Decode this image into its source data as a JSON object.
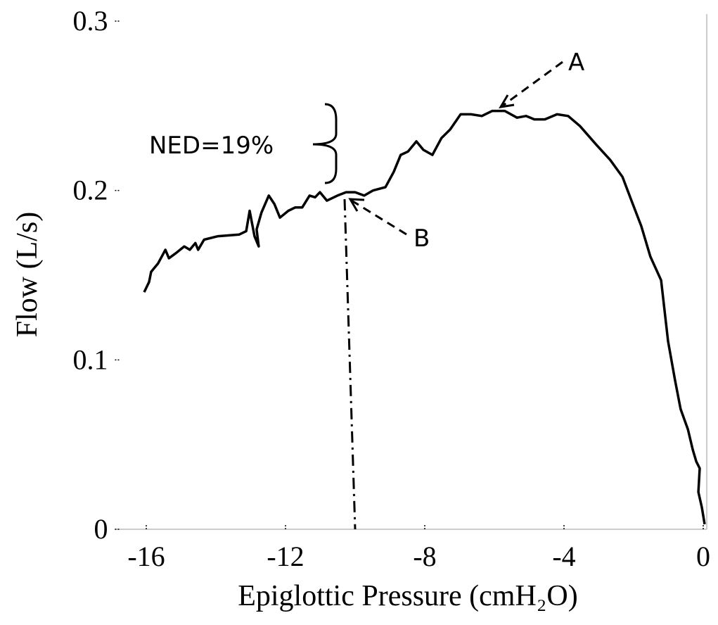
{
  "chart_data": {
    "type": "line",
    "x_label": "Epiglottic Pressure (cmH₂O)",
    "y_label": "Flow (L/s)",
    "annotations": [
      "A",
      "B",
      "NED=19%"
    ],
    "x": [
      -16.06,
      -15.92,
      -15.86,
      -15.66,
      -15.45,
      -15.35,
      -15.15,
      -14.91,
      -14.75,
      -14.59,
      -14.51,
      -14.34,
      -13.94,
      -13.33,
      -13.13,
      -13.03,
      -12.89,
      -12.77,
      -12.83,
      -12.69,
      -12.48,
      -12.32,
      -12.16,
      -11.92,
      -11.72,
      -11.52,
      -11.31,
      -11.15,
      -11.01,
      -10.81,
      -10.51,
      -10.26,
      -10.0,
      -9.74,
      -9.49,
      -9.13,
      -8.89,
      -8.69,
      -8.48,
      -8.24,
      -8.04,
      -7.78,
      -7.52,
      -7.27,
      -6.97,
      -6.67,
      -6.36,
      -6.06,
      -5.7,
      -5.35,
      -5.09,
      -4.85,
      -4.55,
      -4.2,
      -3.88,
      -3.54,
      -3.07,
      -2.67,
      -2.32,
      -2.06,
      -1.78,
      -1.52,
      -1.21,
      -1.01,
      -0.81,
      -0.65,
      -0.44,
      -0.3,
      -0.2,
      -0.1,
      -0.14,
      -0.04,
      0.04
    ],
    "series": [
      {
        "color": "#000000",
        "values": [
          0.14,
          0.146,
          0.152,
          0.157,
          0.165,
          0.16,
          0.163,
          0.167,
          0.165,
          0.169,
          0.165,
          0.171,
          0.173,
          0.174,
          0.176,
          0.188,
          0.173,
          0.167,
          0.177,
          0.187,
          0.197,
          0.192,
          0.184,
          0.188,
          0.19,
          0.19,
          0.197,
          0.196,
          0.199,
          0.194,
          0.197,
          0.199,
          0.199,
          0.197,
          0.2,
          0.202,
          0.211,
          0.221,
          0.223,
          0.229,
          0.224,
          0.221,
          0.231,
          0.236,
          0.245,
          0.245,
          0.244,
          0.247,
          0.247,
          0.243,
          0.244,
          0.242,
          0.242,
          0.245,
          0.244,
          0.238,
          0.227,
          0.218,
          0.208,
          0.194,
          0.179,
          0.161,
          0.147,
          0.111,
          0.088,
          0.071,
          0.059,
          0.047,
          0.04,
          0.036,
          0.022,
          0.013,
          0.003
        ]
      }
    ],
    "xlim": [
      -16.9,
      0.1
    ],
    "xticks": [
      -16,
      -12,
      -8,
      -4,
      0
    ],
    "ylim": [
      0,
      0.3
    ],
    "yticks": [
      0,
      0.1,
      0.2,
      0.3
    ]
  }
}
